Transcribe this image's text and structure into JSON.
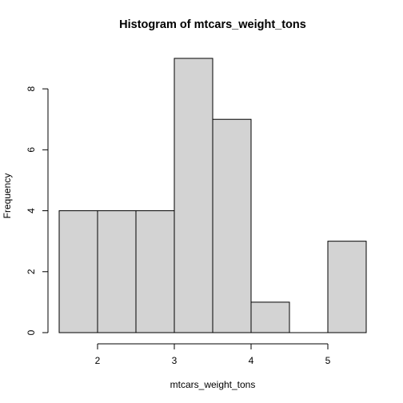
{
  "chart_data": {
    "type": "bar",
    "title": "Histogram of mtcars_weight_tons",
    "xlabel": "mtcars_weight_tons",
    "ylabel": "Frequency",
    "bin_edges": [
      1.5,
      2.0,
      2.5,
      3.0,
      3.5,
      4.0,
      4.5,
      5.0,
      5.5
    ],
    "values": [
      4,
      4,
      4,
      9,
      7,
      1,
      0,
      3
    ],
    "xlim": [
      1.5,
      5.5
    ],
    "ylim": [
      0,
      9
    ],
    "x_ticks": [
      2,
      3,
      4,
      5
    ],
    "y_ticks": [
      0,
      2,
      4,
      6,
      8
    ],
    "bar_color": "#d3d3d3",
    "grid": false
  }
}
